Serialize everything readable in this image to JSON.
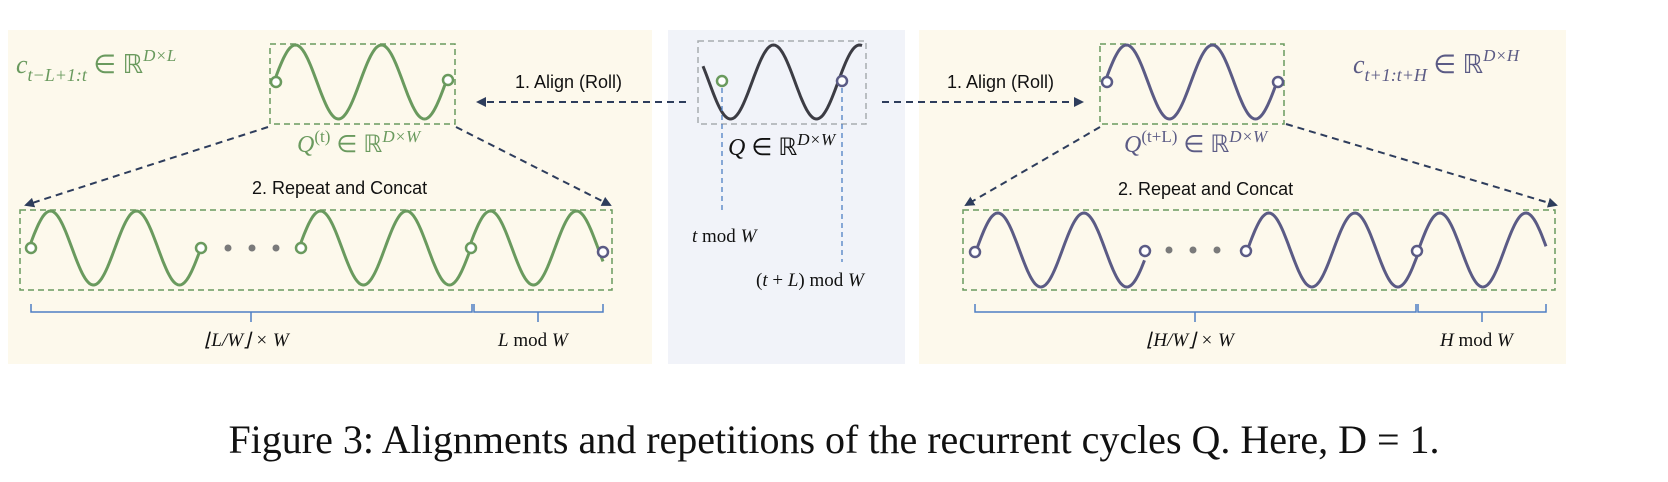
{
  "colors": {
    "panel_bg": "#fdf9ec",
    "center_bg": "#f1f3f9",
    "green": "#6a9a5e",
    "purple": "#5b5b85",
    "dark_wave": "#3c3c44",
    "arrow": "#2e3d5c",
    "box_gray": "#a8acb0",
    "brace": "#4e7fc4",
    "dots": "#7a7a7a"
  },
  "labels": {
    "align_left": "1. Align (Roll)",
    "align_right": "1. Align (Roll)",
    "repeat_left": "2. Repeat and Concat",
    "repeat_right": "2. Repeat and Concat"
  },
  "math": {
    "c_left": {
      "base": "c",
      "sub": "t−L+1:t",
      "rest": " ∈ ℝ",
      "sup": "D×L"
    },
    "q_left": {
      "base": "Q",
      "sup1": "(t)",
      "rest": " ∈ ℝ",
      "sup2": "D×W"
    },
    "q_center": {
      "base": "Q",
      "rest": " ∈ ℝ",
      "sup": "D×W"
    },
    "t_mod": {
      "var": "t",
      "rest": " mod ",
      "var2": "W"
    },
    "tl_mod": {
      "pre": "(",
      "var": "t",
      "mid": " + ",
      "var1": "L",
      "post": ") mod ",
      "var2": "W"
    },
    "q_right": {
      "base": "Q",
      "sup1": "(t+L)",
      "rest": " ∈ ℝ",
      "sup2": "D×W"
    },
    "c_right": {
      "base": "c",
      "sub": "t+1:t+H",
      "rest": " ∈ ℝ",
      "sup": "D×H"
    },
    "floor_left": {
      "text": "⌊L/W⌋ × W"
    },
    "mod_left": {
      "var": "L",
      "rest": " mod ",
      "var2": "W"
    },
    "floor_right": {
      "text": "⌊H/W⌋ × W"
    },
    "mod_right": {
      "var": "H",
      "rest": " mod ",
      "var2": "W"
    }
  },
  "caption": "Figure 3: Alignments and repetitions of the recurrent cycles Q. Here, D = 1."
}
